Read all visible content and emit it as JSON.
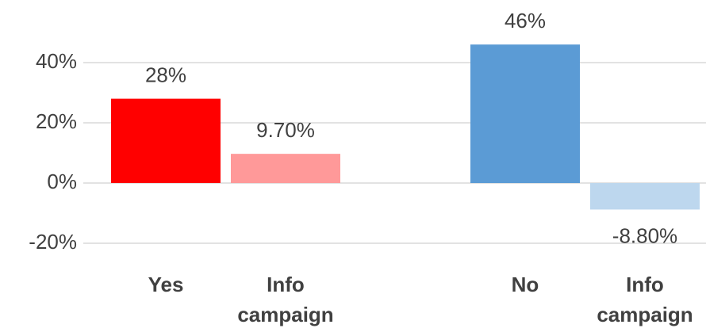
{
  "chart_data": {
    "type": "bar",
    "categories": [
      "Yes",
      "Info campaign",
      null,
      "No",
      "Info campaign"
    ],
    "values": [
      28,
      9.7,
      null,
      46,
      -8.8
    ],
    "value_labels": [
      "28%",
      "9.70%",
      null,
      "46%",
      "-8.80%"
    ],
    "colors": [
      "#ff0000",
      "#ff9999",
      null,
      "#5b9bd5",
      "#bdd7ee"
    ],
    "ylim": [
      -20,
      60
    ],
    "yticks": [
      {
        "value": -20,
        "label": "-20%"
      },
      {
        "value": 0,
        "label": "0%"
      },
      {
        "value": 20,
        "label": "20%"
      },
      {
        "value": 40,
        "label": "40%"
      }
    ],
    "grid": true
  }
}
